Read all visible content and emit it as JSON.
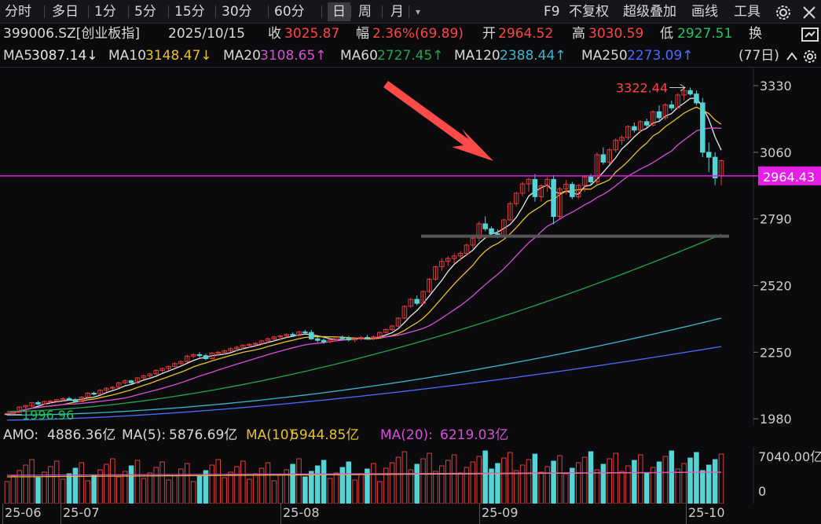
{
  "toolbar": {
    "periods": [
      "分时",
      "多日",
      "1分",
      "5分",
      "15分",
      "30分",
      "60分",
      "日",
      "周",
      "月"
    ],
    "active_period": "日",
    "dropdown_glyph": "▾",
    "right_items": [
      "F9",
      "不复权",
      "超级叠加",
      "画线",
      "工具"
    ]
  },
  "info": {
    "code": "399006.SZ[创业板指]",
    "date": "2025/10/15",
    "close_label": "收",
    "close": "3025.87",
    "change_label": "幅",
    "change": "2.36%(69.89)",
    "open_label": "开",
    "open": "2964.52",
    "high_label": "高",
    "high": "3030.59",
    "low_label": "低",
    "low": "2927.51",
    "turnover_label": "换"
  },
  "ma": [
    {
      "label": "MA5",
      "value": "3087.14",
      "dir": "↓",
      "color": "#e8e8e8"
    },
    {
      "label": "MA10",
      "value": "3148.47",
      "dir": "↓",
      "color": "#e6c229"
    },
    {
      "label": "MA20",
      "value": "3108.65",
      "dir": "↑",
      "color": "#d84fd8"
    },
    {
      "label": "MA60",
      "value": "2727.45",
      "dir": "↑",
      "color": "#23a54b"
    },
    {
      "label": "MA120",
      "value": "2388.44",
      "dir": "↑",
      "color": "#3fb6c8"
    },
    {
      "label": "MA250",
      "value": "2273.09",
      "dir": "↑",
      "color": "#4a6cff"
    }
  ],
  "days_label": "(77日)",
  "price_axis": {
    "ticks": [
      "3330",
      "3060",
      "2790",
      "2520",
      "2250",
      "1980"
    ],
    "current": "2964.43",
    "high_label": "3322.44",
    "low_label": "1996.96",
    "line_price": 2964.43,
    "ymin": 1955,
    "ymax": 3400
  },
  "volume": {
    "amo_label": "AMO:",
    "amo": "4886.36亿",
    "ma5_label": "MA(5):",
    "ma5": "5876.69亿",
    "ma10_label": "MA(10):",
    "ma10": "5944.85亿",
    "ma20_label": "MA(20):",
    "ma20": "6219.03亿",
    "axis_top": "7040.00亿",
    "axis_zero": "0"
  },
  "xaxis": [
    "25-06",
    "25-07",
    "25-08",
    "25-09",
    "25-10"
  ],
  "colors": {
    "up": "#e03c3c",
    "down": "#54d4d4",
    "ma5": "#e8e8e8",
    "ma10": "#e6c229",
    "ma20": "#d84fd8",
    "ma60": "#23a54b",
    "ma120": "#3fb6c8",
    "ma250": "#4a6cff",
    "line": "#e61ee6",
    "arrow": "#ff4a4a"
  },
  "chart_data": {
    "type": "candlestick",
    "series": [
      {
        "name": "K",
        "ohlc": [
          [
            1999,
            2003,
            1997,
            2002
          ],
          [
            2002,
            2008,
            2000,
            2006
          ],
          [
            2006,
            2030,
            2004,
            2028
          ],
          [
            2028,
            2036,
            2022,
            2034
          ],
          [
            2032,
            2048,
            2028,
            2046
          ],
          [
            2046,
            2052,
            2036,
            2040
          ],
          [
            2040,
            2054,
            2036,
            2050
          ],
          [
            2050,
            2056,
            2042,
            2052
          ],
          [
            2052,
            2060,
            2046,
            2058
          ],
          [
            2058,
            2066,
            2050,
            2062
          ],
          [
            2062,
            2070,
            2055,
            2058
          ],
          [
            2058,
            2064,
            2046,
            2050
          ],
          [
            2050,
            2072,
            2048,
            2068
          ],
          [
            2068,
            2088,
            2064,
            2084
          ],
          [
            2084,
            2090,
            2075,
            2080
          ],
          [
            2080,
            2100,
            2076,
            2096
          ],
          [
            2096,
            2108,
            2090,
            2104
          ],
          [
            2104,
            2112,
            2098,
            2108
          ],
          [
            2108,
            2130,
            2104,
            2126
          ],
          [
            2126,
            2140,
            2120,
            2134
          ],
          [
            2134,
            2138,
            2120,
            2126
          ],
          [
            2126,
            2150,
            2122,
            2146
          ],
          [
            2146,
            2160,
            2140,
            2154
          ],
          [
            2154,
            2166,
            2148,
            2162
          ],
          [
            2162,
            2180,
            2158,
            2176
          ],
          [
            2176,
            2188,
            2170,
            2184
          ],
          [
            2184,
            2196,
            2176,
            2192
          ],
          [
            2192,
            2210,
            2188,
            2204
          ],
          [
            2204,
            2216,
            2198,
            2212
          ],
          [
            2212,
            2240,
            2208,
            2234
          ],
          [
            2234,
            2246,
            2226,
            2240
          ],
          [
            2240,
            2250,
            2228,
            2236
          ],
          [
            2236,
            2244,
            2218,
            2224
          ],
          [
            2224,
            2250,
            2220,
            2246
          ],
          [
            2246,
            2254,
            2238,
            2250
          ],
          [
            2250,
            2260,
            2240,
            2256
          ],
          [
            2256,
            2270,
            2250,
            2264
          ],
          [
            2264,
            2276,
            2256,
            2270
          ],
          [
            2270,
            2282,
            2262,
            2278
          ],
          [
            2278,
            2286,
            2268,
            2282
          ],
          [
            2282,
            2290,
            2270,
            2286
          ],
          [
            2286,
            2300,
            2280,
            2296
          ],
          [
            2296,
            2310,
            2288,
            2304
          ],
          [
            2304,
            2316,
            2296,
            2312
          ],
          [
            2312,
            2320,
            2300,
            2316
          ],
          [
            2316,
            2326,
            2310,
            2322
          ],
          [
            2322,
            2330,
            2312,
            2318
          ],
          [
            2318,
            2336,
            2314,
            2332
          ],
          [
            2332,
            2340,
            2322,
            2330
          ],
          [
            2330,
            2340,
            2300,
            2304
          ],
          [
            2304,
            2312,
            2290,
            2298
          ],
          [
            2298,
            2306,
            2284,
            2292
          ],
          [
            2292,
            2304,
            2286,
            2300
          ],
          [
            2300,
            2314,
            2296,
            2310
          ],
          [
            2310,
            2318,
            2300,
            2306
          ],
          [
            2306,
            2316,
            2294,
            2300
          ],
          [
            2300,
            2308,
            2290,
            2304
          ],
          [
            2304,
            2316,
            2298,
            2310
          ],
          [
            2310,
            2320,
            2302,
            2306
          ],
          [
            2306,
            2318,
            2298,
            2312
          ],
          [
            2312,
            2334,
            2310,
            2330
          ],
          [
            2330,
            2346,
            2326,
            2342
          ],
          [
            2342,
            2360,
            2336,
            2356
          ],
          [
            2356,
            2392,
            2352,
            2388
          ],
          [
            2388,
            2440,
            2384,
            2436
          ],
          [
            2436,
            2470,
            2430,
            2464
          ],
          [
            2464,
            2480,
            2440,
            2448
          ],
          [
            2448,
            2500,
            2444,
            2496
          ],
          [
            2496,
            2550,
            2490,
            2546
          ],
          [
            2546,
            2600,
            2540,
            2596
          ],
          [
            2596,
            2630,
            2580,
            2618
          ],
          [
            2618,
            2640,
            2600,
            2630
          ],
          [
            2630,
            2650,
            2610,
            2640
          ],
          [
            2640,
            2660,
            2620,
            2650
          ],
          [
            2650,
            2690,
            2640,
            2684
          ],
          [
            2684,
            2720,
            2670,
            2712
          ],
          [
            2712,
            2780,
            2700,
            2770
          ],
          [
            2770,
            2800,
            2740,
            2750
          ],
          [
            2750,
            2760,
            2720,
            2730
          ],
          [
            2730,
            2748,
            2712,
            2720
          ],
          [
            2720,
            2790,
            2716,
            2786
          ],
          [
            2786,
            2860,
            2780,
            2852
          ],
          [
            2852,
            2900,
            2840,
            2894
          ],
          [
            2894,
            2940,
            2880,
            2932
          ],
          [
            2932,
            2958,
            2900,
            2950
          ],
          [
            2950,
            2972,
            2860,
            2880
          ],
          [
            2880,
            2930,
            2860,
            2924
          ],
          [
            2924,
            2960,
            2900,
            2950
          ],
          [
            2950,
            2968,
            2768,
            2800
          ],
          [
            2800,
            2920,
            2790,
            2912
          ],
          [
            2912,
            2948,
            2890,
            2930
          ],
          [
            2930,
            2940,
            2870,
            2880
          ],
          [
            2880,
            2932,
            2870,
            2926
          ],
          [
            2926,
            2966,
            2900,
            2960
          ],
          [
            2960,
            2972,
            2930,
            2940
          ],
          [
            2940,
            3060,
            2932,
            3050
          ],
          [
            3050,
            3080,
            3010,
            3020
          ],
          [
            3020,
            3076,
            3012,
            3070
          ],
          [
            3070,
            3116,
            3060,
            3108
          ],
          [
            3108,
            3130,
            3090,
            3120
          ],
          [
            3120,
            3170,
            3110,
            3164
          ],
          [
            3164,
            3180,
            3140,
            3150
          ],
          [
            3150,
            3190,
            3140,
            3184
          ],
          [
            3184,
            3196,
            3160,
            3170
          ],
          [
            3170,
            3230,
            3164,
            3224
          ],
          [
            3224,
            3250,
            3190,
            3200
          ],
          [
            3200,
            3260,
            3190,
            3252
          ],
          [
            3252,
            3270,
            3230,
            3240
          ],
          [
            3240,
            3300,
            3236,
            3292
          ],
          [
            3292,
            3322,
            3270,
            3310
          ],
          [
            3310,
            3322,
            3290,
            3296
          ],
          [
            3296,
            3310,
            3250,
            3260
          ],
          [
            3260,
            3280,
            3040,
            3060
          ],
          [
            3060,
            3100,
            2980,
            3040
          ],
          [
            3040,
            3060,
            2927,
            2956
          ],
          [
            2964,
            3030,
            2927,
            3026
          ]
        ]
      }
    ],
    "x_labels": [
      "25-06",
      "25-07",
      "25-08",
      "25-09",
      "25-10"
    ],
    "yticks": [
      3330,
      3060,
      2790,
      2520,
      2250,
      1980
    ],
    "annotations": [
      "3322.44",
      "1996.96",
      "2964.43"
    ]
  }
}
